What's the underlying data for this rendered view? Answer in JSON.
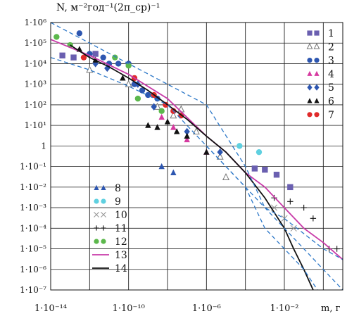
{
  "chart_data": {
    "type": "scatter",
    "title": "N, м⁻²год⁻¹(2π_ср)⁻¹",
    "ylabel": "N, м⁻²год⁻¹(2π_ср)⁻¹",
    "xlabel": "m, г",
    "xscale": "log",
    "yscale": "log",
    "xlim": [
      1e-14,
      10
    ],
    "ylim": [
      1e-07,
      1000000.0
    ],
    "grid": true,
    "x_ticks": [
      "1·10⁻¹⁴",
      "1·10⁻¹⁰",
      "1·10⁻⁶",
      "1·10⁻²"
    ],
    "y_ticks": [
      "1·10⁶",
      "1·10⁵",
      "1·10⁴",
      "1·10³",
      "1·10²",
      "1·10¹",
      "1",
      "1·10⁻¹",
      "1·10⁻²",
      "1·10⁻³",
      "1·10⁻⁴",
      "1·10⁻⁵",
      "1·10⁻⁶",
      "1·10⁻⁷"
    ],
    "legend_placement": [
      "top-right",
      "bottom-left"
    ],
    "series": [
      {
        "name": "1",
        "marker": "square",
        "color": "#6a5fb0",
        "points": [
          [
            4e-14,
            25000.0
          ],
          [
            1.5e-13,
            20000.0
          ],
          [
            2e-12,
            30000.0
          ],
          [
            0.0003,
            0.08
          ],
          [
            0.001,
            0.07
          ],
          [
            0.004,
            0.04
          ],
          [
            0.02,
            0.01
          ]
        ]
      },
      {
        "name": "2",
        "marker": "triangle-open",
        "color": "#777777",
        "points": [
          [
            1e-12,
            5000.0
          ],
          [
            1e-10,
            1000.0
          ],
          [
            3e-09,
            80
          ],
          [
            2e-08,
            30
          ],
          [
            5e-08,
            60
          ],
          [
            3e-07,
            5
          ],
          [
            5e-06,
            0.3
          ],
          [
            1e-05,
            0.03
          ]
        ]
      },
      {
        "name": "3",
        "marker": "circle",
        "color": "#2d56b0",
        "points": [
          [
            3e-13,
            300000.0
          ],
          [
            1e-12,
            30000.0
          ],
          [
            5e-12,
            20000.0
          ],
          [
            1e-11,
            10000.0
          ],
          [
            3e-11,
            10000.0
          ],
          [
            1e-10,
            10000.0
          ],
          [
            2e-10,
            1000.0
          ],
          [
            5e-10,
            500.0
          ],
          [
            1e-09,
            300.0
          ],
          [
            3e-09,
            200.0
          ]
        ]
      },
      {
        "name": "4",
        "marker": "triangle",
        "color": "#d63aa0",
        "points": [
          [
            5e-09,
            25
          ],
          [
            2e-08,
            8
          ],
          [
            1e-07,
            2
          ],
          [
            1e-06,
            0.5
          ]
        ]
      },
      {
        "name": "5",
        "marker": "diamond",
        "color": "#2d56b0",
        "points": [
          [
            2e-12,
            10000.0
          ],
          [
            8e-12,
            6000.0
          ],
          [
            3e-10,
            1000.0
          ],
          [
            2e-09,
            80
          ],
          [
            1e-07,
            5
          ],
          [
            5e-06,
            0.5
          ]
        ]
      },
      {
        "name": "6",
        "marker": "triangle",
        "color": "#111111",
        "points": [
          [
            3e-13,
            50000.0
          ],
          [
            2e-12,
            15000.0
          ],
          [
            5e-11,
            2000.0
          ],
          [
            1e-09,
            10
          ],
          [
            3e-09,
            8
          ],
          [
            1e-08,
            15
          ],
          [
            3e-08,
            5
          ],
          [
            1e-07,
            3
          ],
          [
            1e-06,
            0.5
          ]
        ]
      },
      {
        "name": "7",
        "marker": "circle",
        "color": "#e02a2a",
        "points": [
          [
            5e-13,
            20000.0
          ],
          [
            2e-10,
            2000.0
          ],
          [
            2e-09,
            300
          ],
          [
            8e-09,
            100
          ],
          [
            2e-08,
            50
          ],
          [
            5e-08,
            30
          ]
        ]
      },
      {
        "name": "8",
        "marker": "triangle",
        "color": "#2d56b0",
        "points": [
          [
            5e-09,
            0.1
          ],
          [
            2e-08,
            0.05
          ]
        ]
      },
      {
        "name": "9",
        "marker": "circle",
        "color": "#5fd0e0",
        "points": [
          [
            5e-05,
            1
          ],
          [
            0.0005,
            0.5
          ]
        ]
      },
      {
        "name": "10",
        "marker": "cross",
        "color": "#999999",
        "points": [
          [
            0.003,
            0.001
          ],
          [
            0.01,
            0.0003
          ],
          [
            0.03,
            0.0001
          ]
        ]
      },
      {
        "name": "11",
        "marker": "plus",
        "color": "#111111",
        "points": [
          [
            0.003,
            0.003
          ],
          [
            0.02,
            0.002
          ],
          [
            0.1,
            0.001
          ],
          [
            0.3,
            0.0003
          ],
          [
            2,
            1e-05
          ],
          [
            5,
            1e-05
          ]
        ]
      },
      {
        "name": "12",
        "marker": "circle",
        "color": "#5cb84c",
        "points": [
          [
            2e-14,
            200000.0
          ],
          [
            1e-13,
            80000.0
          ],
          [
            2e-11,
            20000.0
          ],
          [
            1e-10,
            8000.0
          ],
          [
            3e-10,
            200.0
          ],
          [
            5e-09,
            50
          ]
        ]
      },
      {
        "name": "13",
        "marker": "line",
        "color": "#c83aa8",
        "points": [
          [
            1e-14,
            150000.0
          ],
          [
            1e-12,
            25000.0
          ],
          [
            1e-10,
            3000.0
          ],
          [
            1e-08,
            200
          ],
          [
            1e-06,
            3
          ],
          [
            1e-05,
            0.5
          ],
          [
            0.0001,
            0.05
          ],
          [
            0.001,
            0.01
          ],
          [
            0.01,
            0.001
          ],
          [
            0.1,
            0.0001
          ],
          [
            1,
            2e-05
          ],
          [
            10,
            3e-06
          ]
        ]
      },
      {
        "name": "14",
        "marker": "line",
        "color": "#111111",
        "points": [
          [
            1e-13,
            80000.0
          ],
          [
            1e-12,
            20000.0
          ],
          [
            1e-11,
            7000.0
          ],
          [
            1e-10,
            2000.0
          ],
          [
            1e-09,
            500.0
          ],
          [
            1e-08,
            100.0
          ],
          [
            1e-07,
            20
          ],
          [
            1e-06,
            3
          ],
          [
            1e-05,
            0.5
          ],
          [
            0.0001,
            0.05
          ],
          [
            0.001,
            0.003
          ],
          [
            0.01,
            0.0001
          ],
          [
            0.03,
            1e-05
          ],
          [
            0.1,
            1e-06
          ],
          [
            0.3,
            1e-07
          ]
        ]
      },
      {
        "name": "",
        "marker": "dashed",
        "color": "#2d78c8",
        "points": [
          [
            1e-14,
            1000000.0
          ],
          [
            1e-12,
            100000.0
          ],
          [
            1e-10,
            10000.0
          ],
          [
            1e-08,
            1000.0
          ],
          [
            1e-06,
            100.0
          ],
          [
            0.0001,
            0.1
          ],
          [
            0.001,
            0.001
          ],
          [
            0.01,
            0.0003
          ],
          [
            1,
            1e-05
          ],
          [
            10,
            3e-06
          ]
        ]
      },
      {
        "name": "",
        "marker": "dashed",
        "color": "#2d78c8",
        "points": [
          [
            1e-14,
            20000.0
          ],
          [
            1e-12,
            5000.0
          ],
          [
            1e-10,
            800
          ],
          [
            1e-08,
            100
          ],
          [
            1e-06,
            1
          ],
          [
            1e-05,
            0.1
          ],
          [
            0.0001,
            0.01
          ],
          [
            0.001,
            0.001
          ],
          [
            0.01,
            0.0001
          ],
          [
            0.1,
            1e-05
          ],
          [
            1,
            1e-06
          ],
          [
            10,
            1e-07
          ]
        ]
      },
      {
        "name": "",
        "marker": "dashed",
        "color": "#2d78c8",
        "points": [
          [
            1e-06,
            1
          ],
          [
            1e-05,
            0.1
          ],
          [
            0.0001,
            0.01
          ],
          [
            0.001,
            0.0001
          ],
          [
            0.01,
            1e-05
          ],
          [
            0.1,
            1e-06
          ],
          [
            0.5,
            1e-07
          ]
        ]
      }
    ]
  }
}
